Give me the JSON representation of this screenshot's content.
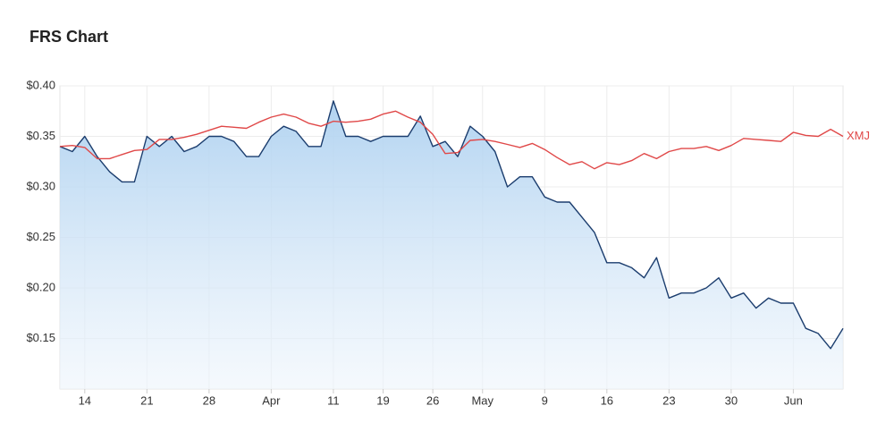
{
  "chart_data": {
    "type": "line",
    "title": "FRS Chart",
    "categories": [
      null,
      null,
      "14",
      null,
      null,
      null,
      null,
      "21",
      null,
      null,
      null,
      null,
      "28",
      null,
      null,
      null,
      null,
      "Apr",
      null,
      null,
      null,
      null,
      "11",
      null,
      null,
      null,
      "19",
      null,
      null,
      null,
      "26",
      null,
      null,
      null,
      "May",
      null,
      null,
      null,
      null,
      "9",
      null,
      null,
      null,
      null,
      "16",
      null,
      null,
      null,
      null,
      "23",
      null,
      null,
      null,
      null,
      "30",
      null,
      null,
      null,
      null,
      "Jun",
      null,
      null,
      null,
      null
    ],
    "series": [
      {
        "color": "#1b3d6e",
        "area": true,
        "values": [
          0.34,
          0.335,
          0.35,
          0.33,
          0.315,
          0.305,
          0.305,
          0.35,
          0.34,
          0.35,
          0.335,
          0.34,
          0.35,
          0.35,
          0.345,
          0.33,
          0.33,
          0.35,
          0.36,
          0.355,
          0.34,
          0.34,
          0.385,
          0.35,
          0.35,
          0.345,
          0.35,
          0.35,
          0.35,
          0.37,
          0.34,
          0.345,
          0.33,
          0.36,
          0.35,
          0.335,
          0.3,
          0.31,
          0.31,
          0.29,
          0.285,
          0.285,
          0.27,
          0.255,
          0.225,
          0.225,
          0.22,
          0.21,
          0.23,
          0.19,
          0.195,
          0.195,
          0.2,
          0.21,
          0.19,
          0.195,
          0.18,
          0.19,
          0.185,
          0.185,
          0.16,
          0.155,
          0.14,
          0.16
        ]
      },
      {
        "name": "XMJ",
        "color": "#e04848",
        "values": [
          0.34,
          0.341,
          0.339,
          0.328,
          0.328,
          0.332,
          0.336,
          0.337,
          0.347,
          0.347,
          0.349,
          0.352,
          0.356,
          0.36,
          0.359,
          0.358,
          0.364,
          0.369,
          0.372,
          0.369,
          0.363,
          0.36,
          0.365,
          0.364,
          0.365,
          0.367,
          0.372,
          0.375,
          0.369,
          0.364,
          0.352,
          0.333,
          0.334,
          0.346,
          0.347,
          0.345,
          0.342,
          0.339,
          0.343,
          0.337,
          0.329,
          0.322,
          0.325,
          0.318,
          0.324,
          0.322,
          0.326,
          0.333,
          0.328,
          0.335,
          0.338,
          0.338,
          0.34,
          0.336,
          0.341,
          0.348,
          0.347,
          0.346,
          0.345,
          0.354,
          0.351,
          0.35,
          0.357,
          0.35
        ]
      }
    ],
    "ylim": [
      0.1,
      0.4
    ],
    "yticks": [
      {
        "value": 0.15,
        "label": "$0.15"
      },
      {
        "value": 0.2,
        "label": "$0.20"
      },
      {
        "value": 0.25,
        "label": "$0.25"
      },
      {
        "value": 0.3,
        "label": "$0.30"
      },
      {
        "value": 0.35,
        "label": "$0.35"
      },
      {
        "value": 0.4,
        "label": "$0.40"
      }
    ],
    "grid": true
  }
}
